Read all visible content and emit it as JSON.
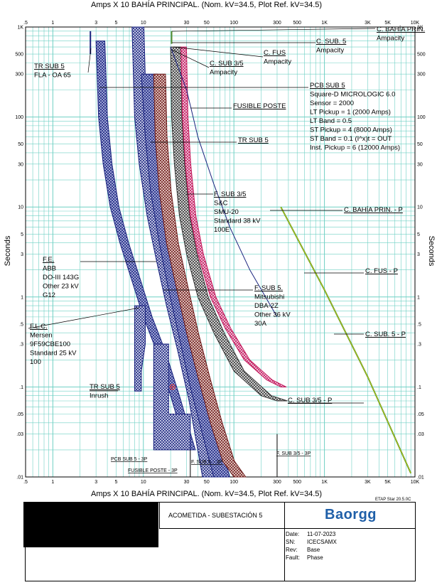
{
  "chart_data": {
    "type": "line",
    "title": "Amps  X  10   BAHÍA PRINCIPAL. (Nom. kV=34.5, Plot Ref. kV=34.5)",
    "xlabel": "Amps  X  10   BAHÍA PRINCIPAL. (Nom. kV=34.5, Plot Ref. kV=34.5)",
    "ylabel": "Seconds",
    "x_scale": "log",
    "y_scale": "log",
    "xlim": [
      0.5,
      10000
    ],
    "ylim": [
      0.01,
      1000
    ],
    "x_ticks": [
      ".5",
      "1",
      "3",
      "5",
      "10",
      "30",
      "50",
      "100",
      "300",
      "500",
      "1K",
      "3K",
      "5K",
      "10K"
    ],
    "y_ticks": [
      "1K",
      "500",
      "300",
      "100",
      "50",
      "30",
      "10",
      "5",
      "3",
      "1",
      ".5",
      ".3",
      ".1",
      ".05",
      ".03",
      ".01"
    ],
    "grid": true,
    "series": [
      {
        "name": "TR SUB 5",
        "color": "#1a237e",
        "x": [
          3.0,
          3.2,
          3.6,
          4.3,
          5.5,
          7.5,
          10,
          14,
          20,
          30
        ],
        "y": [
          700,
          100,
          30,
          10,
          4,
          1.5,
          0.6,
          0.25,
          0.08,
          0.02
        ]
      },
      {
        "name": "F.L.C.",
        "color": "#1a237e",
        "x": [
          7.5,
          8,
          9,
          11,
          14,
          18,
          24,
          32,
          45
        ],
        "y": [
          1000,
          100,
          30,
          8,
          2.5,
          0.8,
          0.25,
          0.07,
          0.01
        ]
      },
      {
        "name": "F.E.",
        "color": "#283593",
        "x": [
          9.5,
          10.5,
          12,
          15,
          19,
          25,
          33,
          45,
          60
        ],
        "y": [
          300,
          60,
          15,
          4,
          1.2,
          0.35,
          0.1,
          0.03,
          0.01
        ]
      },
      {
        "name": "F. SUB 5.",
        "color": "#6d1b1b",
        "x": [
          13,
          13.5,
          15,
          18,
          23,
          30,
          40,
          55,
          75,
          100
        ],
        "y": [
          300,
          60,
          15,
          4,
          1.3,
          0.4,
          0.13,
          0.04,
          0.015,
          0.01
        ]
      },
      {
        "name": "F. SUB 3/5",
        "color": "#555555",
        "x": [
          20,
          20.5,
          22,
          25,
          30,
          40,
          60,
          100,
          200,
          300
        ],
        "y": [
          600,
          100,
          30,
          8,
          3,
          1,
          0.4,
          0.15,
          0.08,
          0.07
        ]
      },
      {
        "name": "FUSIBLE POSTE",
        "color": "#c2185b",
        "x": [
          26,
          27,
          29,
          33,
          40,
          55,
          80,
          130,
          230,
          330
        ],
        "y": [
          600,
          100,
          30,
          8,
          3,
          1,
          0.45,
          0.2,
          0.12,
          0.1
        ]
      },
      {
        "name": "C. BAHÍA PRIN. - P",
        "color": "#558b2f",
        "x": [
          300,
          1000,
          3000,
          8000
        ],
        "y": [
          10,
          1,
          0.1,
          0.01
        ]
      },
      {
        "name": "C. FUS - P",
        "color": "#558b2f",
        "x": [
          300,
          1000,
          3000,
          8000
        ],
        "y": [
          10,
          1,
          0.1,
          0.01
        ]
      },
      {
        "name": "C. SUB. 5 - P",
        "color": "#558b2f",
        "x": [
          300,
          1000,
          3000,
          8000
        ],
        "y": [
          10,
          1,
          0.1,
          0.01
        ]
      },
      {
        "name": "C. SUB 3/5 - P",
        "color": "#558b2f",
        "x": [
          300,
          1000,
          3000,
          8000
        ],
        "y": [
          10,
          1,
          0.1,
          0.01
        ]
      }
    ],
    "annotations": [
      {
        "lines": [
          "C. BAHÍA PRIN.",
          "Ampacity"
        ]
      },
      {
        "lines": [
          "C. SUB. 5",
          "Ampacity"
        ]
      },
      {
        "lines": [
          "C. FUS",
          "Ampacity"
        ]
      },
      {
        "lines": [
          "C. SUB 3/5",
          "Ampacity"
        ]
      },
      {
        "lines": [
          "TR SUB 5",
          "FLA - OA 65"
        ]
      },
      {
        "lines": [
          "PCB SUB 5",
          "Square-D  MICROLOGIC 6.0",
          "Sensor = 2000",
          "LT Pickup = 1 (2000 Amps)",
          "LT Band = 0.5",
          "ST Pickup = 4 (8000 Amps)",
          "ST Band = 0.1  (I^x)t = OUT",
          "Inst. Pickup = 6 (12000 Amps)"
        ]
      },
      {
        "lines": [
          "FUSIBLE POSTE"
        ]
      },
      {
        "lines": [
          "TR SUB 5"
        ]
      },
      {
        "lines": [
          "F. SUB 3/5",
          "S&C",
          "SMU-20",
          "Standard  38 kV",
          "100E"
        ]
      },
      {
        "lines": [
          "C. BAHÍA PRIN. - P"
        ]
      },
      {
        "lines": [
          "C. FUS - P"
        ]
      },
      {
        "lines": [
          "F.E.",
          "ABB",
          "DO-III 143G",
          "Other  23 kV",
          "G12"
        ]
      },
      {
        "lines": [
          "F. SUB 5.",
          "Mitsubishi",
          "DBA-2Z",
          "Other  36 kV",
          "30A"
        ]
      },
      {
        "lines": [
          "F.L.C.",
          "Mersen",
          "9F59CBE100",
          "Standard  25 kV",
          "100"
        ]
      },
      {
        "lines": [
          "C. SUB. 5 - P"
        ]
      },
      {
        "lines": [
          "TR SUB 5",
          "Inrush"
        ]
      },
      {
        "lines": [
          "C. SUB 3/5 - P"
        ]
      },
      {
        "lines": [
          "PCB SUB 5 - 3P"
        ]
      },
      {
        "lines": [
          "F. SUB 5. - 3P"
        ]
      },
      {
        "lines": [
          "FUSIBLE POSTE - 3P"
        ]
      },
      {
        "lines": [
          "F. SUB 3/5 - 3P"
        ]
      }
    ]
  },
  "version": "ETAP Star 20.5.0C",
  "title_block": {
    "project": "ACOMETIDA - SUBESTACIÓN 5",
    "logo": "Baorgg",
    "fields": [
      {
        "label": "Date:",
        "value": "11-07-2023"
      },
      {
        "label": "SN:",
        "value": "ICECSAMX"
      },
      {
        "label": "Rev:",
        "value": "Base"
      },
      {
        "label": "Fault:",
        "value": "Phase"
      }
    ]
  },
  "colors": {
    "grid": "#6fd0c4",
    "navy": "#1a237e",
    "brown": "#6d1b1b",
    "pink": "#c2185b",
    "green": "#558b2f",
    "gray": "#555555"
  }
}
